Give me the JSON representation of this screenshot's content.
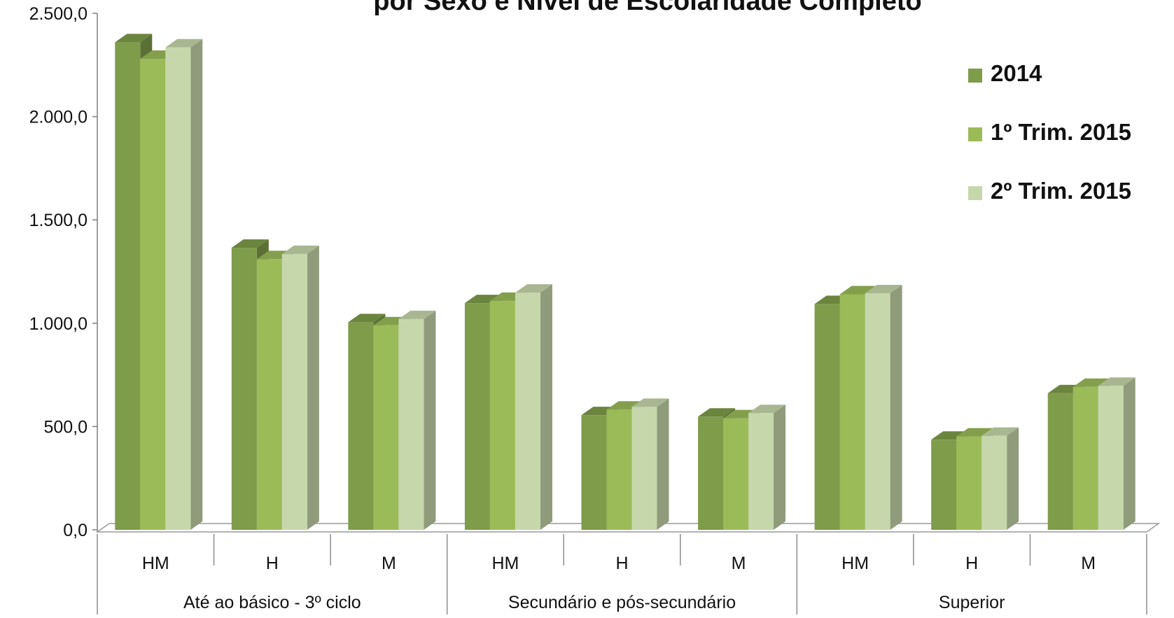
{
  "chart_data": {
    "type": "bar",
    "title": "por Sexo e Nível de Escolaridade Completo",
    "xlabel": "",
    "ylabel": "",
    "ylim": [
      0,
      2500
    ],
    "y_ticks": [
      "0,0",
      "500,0",
      "1.000,0",
      "1.500,0",
      "2.000,0",
      "2.500,0"
    ],
    "y_tick_values": [
      0,
      500,
      1000,
      1500,
      2000,
      2500
    ],
    "grid": false,
    "legend_position": "right",
    "categories": [
      "HM",
      "H",
      "M",
      "HM",
      "H",
      "M",
      "HM",
      "H",
      "M"
    ],
    "groups": [
      {
        "label": "Até ao básico - 3º ciclo",
        "span": 3
      },
      {
        "label": "Secundário e pós-secundário",
        "span": 3
      },
      {
        "label": "Superior",
        "span": 3
      }
    ],
    "series": [
      {
        "name": "2014",
        "color": "#7E9C4A",
        "values": [
          2360,
          1365,
          1005,
          1097,
          555,
          548,
          1093,
          436,
          661
        ]
      },
      {
        "name": "1º Trim. 2015",
        "color": "#9BBB59",
        "values": [
          2280,
          1310,
          990,
          1108,
          582,
          540,
          1140,
          452,
          692
        ]
      },
      {
        "name": "2º Trim. 2015",
        "color": "#C6D7AB",
        "values": [
          2335,
          1335,
          1020,
          1148,
          595,
          565,
          1145,
          455,
          697
        ]
      }
    ]
  }
}
